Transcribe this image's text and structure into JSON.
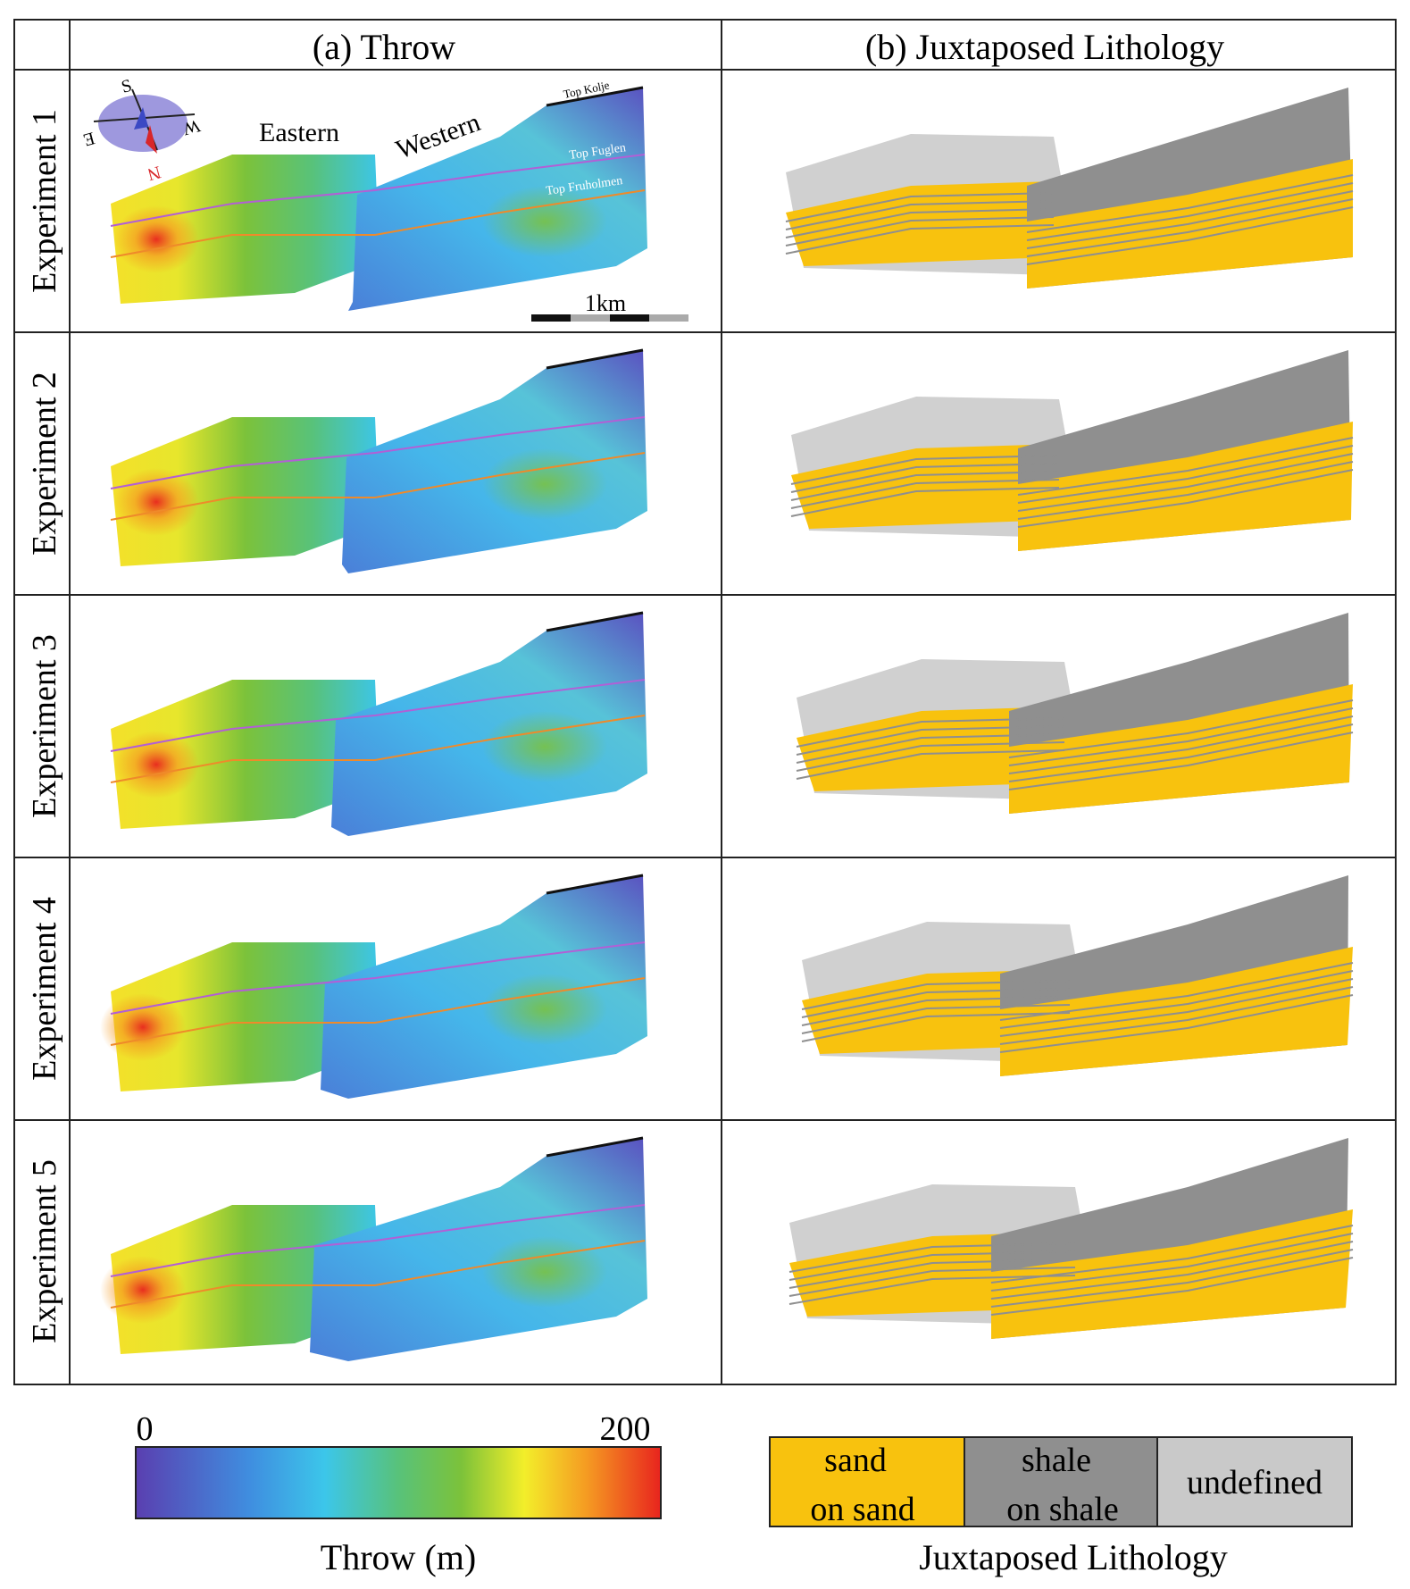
{
  "figure": {
    "columns": [
      "(a) Throw",
      "(b) Juxtaposed Lithology"
    ],
    "rows": [
      {
        "label": "Experiment 1"
      },
      {
        "label": "Experiment 2"
      },
      {
        "label": "Experiment 3"
      },
      {
        "label": "Experiment 4"
      },
      {
        "label": "Experiment 5"
      }
    ],
    "annotations": {
      "eastern": "Eastern",
      "western": "Western",
      "top_kolje": "Top Kolje",
      "top_fuglen": "Top Fuglen",
      "top_fruholmen": "Top Fruholmen",
      "scale_bar": "1km",
      "compass": {
        "s": "S",
        "w": "W",
        "e": "E",
        "n": "N"
      }
    },
    "throw_colorbar": {
      "min": "0",
      "max": "200",
      "label": "Throw (m)",
      "colors": [
        "#5a3fb0",
        "#3f8fe0",
        "#3cc6ea",
        "#58c27a",
        "#7cc23a",
        "#f3ee2a",
        "#f59a22",
        "#e8241e"
      ]
    },
    "lithology_legend": {
      "title": "Juxtaposed Lithology",
      "items": [
        {
          "label_line1": "sand",
          "label_line2": "on sand",
          "color": "#f8c20e"
        },
        {
          "label_line1": "shale",
          "label_line2": "on shale",
          "color": "#8f8f8f"
        },
        {
          "label_line1": "undefined",
          "label_line2": "",
          "color": "#c9c9c9"
        }
      ]
    },
    "colors": {
      "fuglen_horizon": "#b25fd6",
      "fruholmen_horizon": "#ef8a2a",
      "sand": "#f8c20e",
      "shale": "#8f8f8f",
      "undefined": "#d0d0d0"
    }
  }
}
